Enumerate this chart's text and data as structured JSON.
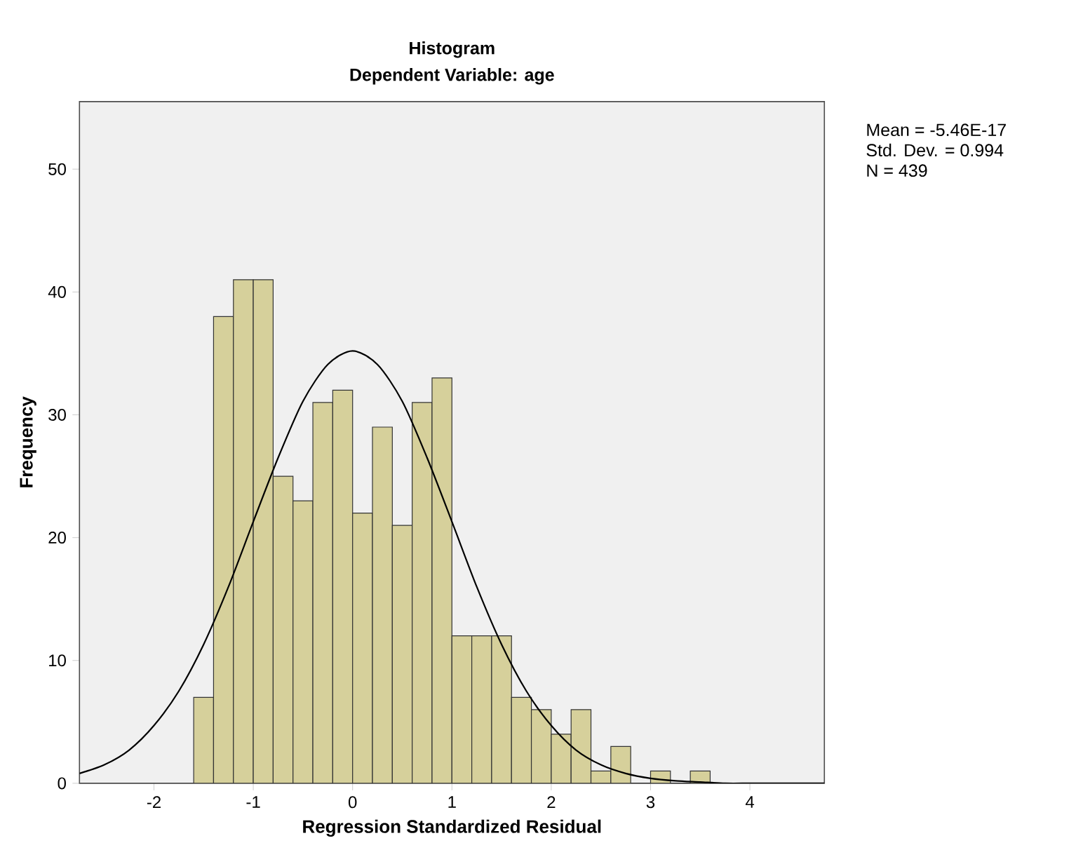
{
  "chart_data": {
    "type": "histogram",
    "title": "Histogram",
    "subtitle": "Dependent Variable: age",
    "xlabel": "Regression Standardized Residual",
    "ylabel": "Frequency",
    "bins": [
      -1.6,
      -1.4,
      -1.2,
      -1.0,
      -0.8,
      -0.6,
      -0.4,
      -0.2,
      0.0,
      0.2,
      0.4,
      0.6,
      0.8,
      1.0,
      1.2,
      1.4,
      1.6,
      1.8,
      2.0,
      2.2,
      2.4,
      2.6,
      2.8,
      3.0,
      3.2,
      3.4,
      3.6
    ],
    "values": [
      7,
      38,
      41,
      41,
      25,
      23,
      31,
      32,
      22,
      29,
      21,
      31,
      33,
      12,
      12,
      12,
      7,
      6,
      4,
      6,
      1,
      3,
      0,
      1,
      0,
      1
    ],
    "color": "#d6d09b",
    "series": [
      {
        "type": "line",
        "color": "#000000",
        "x": [
          -2.75,
          -2.5,
          -2.25,
          -2,
          -1.75,
          -1.5,
          -1.25,
          -1,
          -0.75,
          -0.5,
          -0.25,
          0,
          0.25,
          0.5,
          0.75,
          1,
          1.25,
          1.5,
          1.75,
          2,
          2.25,
          2.5,
          2.75,
          3,
          3.25,
          3.5,
          3.75,
          4,
          4.25,
          4.5,
          4.75
        ],
        "values": [
          0.8,
          1.5,
          2.7,
          4.7,
          7.5,
          11.3,
          16.0,
          21.3,
          26.5,
          31.1,
          34.1,
          35.2,
          34.1,
          31.1,
          26.5,
          21.3,
          16.0,
          11.3,
          7.5,
          4.7,
          2.7,
          1.5,
          0.8,
          0.4,
          0.2,
          0.1,
          0.0,
          0.0,
          0.0,
          0.0,
          0.0
        ]
      }
    ],
    "xlim": [
      -2.75,
      4.75
    ],
    "ylim": [
      0,
      55.5
    ],
    "xticks": [
      -2,
      -1,
      0,
      1,
      2,
      3,
      4
    ],
    "yticks": [
      0,
      10,
      20,
      30,
      40,
      50
    ],
    "annotations": [
      "Mean = -5.46E-17",
      "Std. Dev. = 0.994",
      "N = 439"
    ]
  }
}
